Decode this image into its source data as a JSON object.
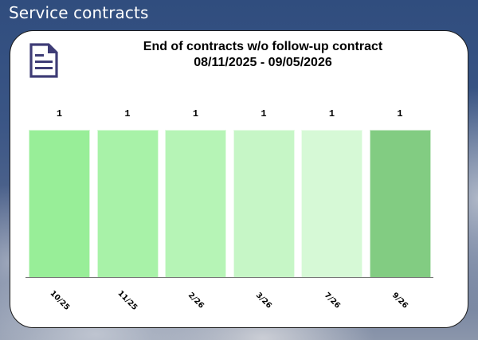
{
  "header": {
    "title": "Service contracts"
  },
  "card": {
    "icon": "document-icon",
    "title_line1": "End of contracts w/o follow-up contract",
    "title_line2": "08/11/2025 - 09/05/2026"
  },
  "colors": {
    "bars": [
      "#98ee98",
      "#a8f2a8",
      "#b6f4b6",
      "#c6f6c6",
      "#d6f9d6",
      "#82cc82"
    ],
    "icon": "#3e3c76"
  },
  "chart_data": {
    "type": "bar",
    "title": "End of contracts w/o follow-up contract 08/11/2025 - 09/05/2026",
    "categories": [
      "10/25",
      "11/25",
      "2/26",
      "3/26",
      "7/26",
      "9/26"
    ],
    "values": [
      1,
      1,
      1,
      1,
      1,
      1
    ],
    "data_labels": [
      "1",
      "1",
      "1",
      "1",
      "1",
      "1"
    ],
    "xlabel": "",
    "ylabel": "",
    "ylim": [
      0,
      1
    ],
    "grid": false,
    "legend": null
  }
}
